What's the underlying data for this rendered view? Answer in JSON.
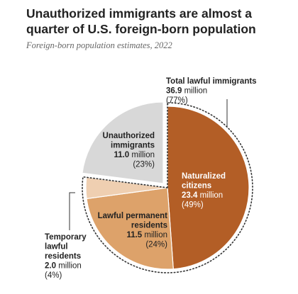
{
  "title": "Unauthorized immigrants are almost a quarter of U.S. foreign-born population",
  "title_lines": [
    "Unauthorized immigrants are almost a",
    "quarter of U.S. foreign-born population"
  ],
  "subtitle": "Foreign-born population estimates, 2022",
  "colors": {
    "naturalized": "#b35e26",
    "lpr": "#dda26a",
    "temporary": "#efcfb1",
    "unauthorized": "#d8d8d8",
    "white_text": "#ffffff",
    "dark_text": "#222222"
  },
  "chart_data": {
    "type": "pie",
    "unit": "million",
    "slices": [
      {
        "key": "naturalized",
        "label_lines": [
          "Naturalized",
          "citizens"
        ],
        "value": 23.4,
        "value_text": "23.4",
        "percent": 49
      },
      {
        "key": "lpr",
        "label_lines": [
          "Lawful permanent",
          "residents"
        ],
        "value": 11.5,
        "value_text": "11.5",
        "percent": 24
      },
      {
        "key": "temporary",
        "label_lines": [
          "Temporary",
          "lawful",
          "residents"
        ],
        "value": 2.0,
        "value_text": "2.0",
        "percent": 4
      },
      {
        "key": "unauthorized",
        "label_lines": [
          "Unauthorized",
          "immigrants"
        ],
        "value": 11.0,
        "value_text": "11.0",
        "percent": 23
      }
    ],
    "group": {
      "label": "Total lawful immigrants",
      "value": 36.9,
      "value_text": "36.9",
      "percent": 77
    }
  }
}
